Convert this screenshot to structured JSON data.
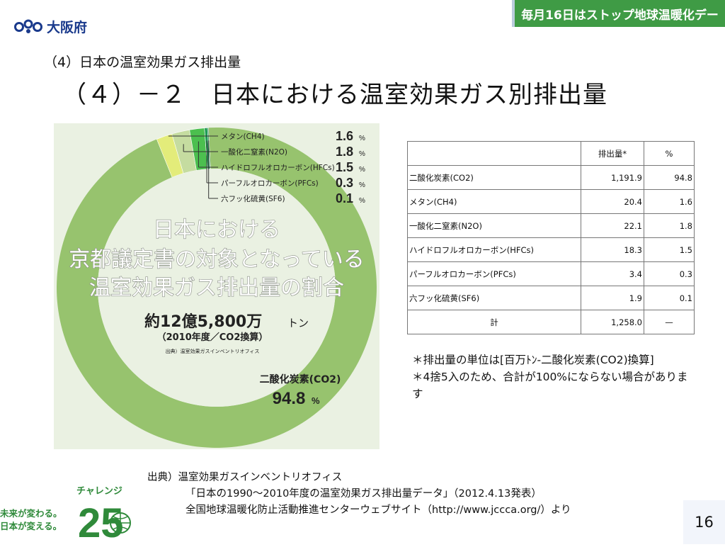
{
  "header": {
    "org_name": "大阪府",
    "banner_text": "毎月16日はストップ地球温暖化デー",
    "subtitle": "（4）日本の温室効果ガス排出量",
    "title": "（４）－２　日本における温室効果ガス別排出量"
  },
  "chart_data": {
    "type": "pie",
    "title_lines": [
      "日本における",
      "京都議定書の対象となっている",
      "温室効果ガス排出量の割合"
    ],
    "total_label": "約12億5,800万",
    "total_unit": "トン",
    "total_note": "（2010年度／CO2換算）",
    "source_small": "出典）温室効果ガスインベントリオフィス",
    "slices": [
      {
        "name": "二酸化炭素(CO2)",
        "value": 94.8,
        "label": "94.8",
        "color": "#97c36e"
      },
      {
        "name": "メタン(CH4)",
        "value": 1.6,
        "label": "1.6",
        "color": "#e3ec7a"
      },
      {
        "name": "一酸化二窒素(N2O)",
        "value": 1.8,
        "label": "1.8",
        "color": "#c5dca0"
      },
      {
        "name": "ハイドロフルオロカーボン(HFCs)",
        "value": 1.5,
        "label": "1.5",
        "color": "#4cbf4f"
      },
      {
        "name": "パーフルオロカーボン(PFCs)",
        "value": 0.3,
        "label": "0.3",
        "color": "#1f9a54"
      },
      {
        "name": "六フッ化硫黄(SF6)",
        "value": 0.1,
        "label": "0.1",
        "color": "#0e7c3c"
      }
    ],
    "unit": "%",
    "colors": {
      "background": "#eaf1e2",
      "center": "#eaf1e2",
      "text": "#222222"
    }
  },
  "table": {
    "headers": [
      "",
      "排出量*",
      "%"
    ],
    "rows": [
      {
        "name": "二酸化炭素(CO2)",
        "emission": "1,191.9",
        "percent": "94.8"
      },
      {
        "name": "メタン(CH4)",
        "emission": "20.4",
        "percent": "1.6"
      },
      {
        "name": "一酸化二窒素(N2O)",
        "emission": "22.1",
        "percent": "1.8"
      },
      {
        "name": "ハイドロフルオロカーボン(HFCs)",
        "emission": "18.3",
        "percent": "1.5"
      },
      {
        "name": "パーフルオロカーボン(PFCs)",
        "emission": "3.4",
        "percent": "0.3"
      },
      {
        "name": "六フッ化硫黄(SF6)",
        "emission": "1.9",
        "percent": "0.1"
      }
    ],
    "total": {
      "name": "計",
      "emission": "1,258.0",
      "percent": "—"
    }
  },
  "notes": {
    "line1": "＊排出量の単位は[百万ﾄﾝ-二酸化炭素(CO2)換算]",
    "line2": "＊4捨5入のため、合計が100%にならない場合があります"
  },
  "source": {
    "line1": "出典）温室効果ガスインベントリオフィス",
    "line2": "「日本の1990～2010年度の温室効果ガス排出量データ」（2012.4.13発表）",
    "line3": "全国地球温暖化防止活動推進センターウェブサイト（http://www.jccca.org/）より"
  },
  "challenge": {
    "title": "チャレンジ",
    "line1": "未来が変わる。",
    "line2": "日本が変える。",
    "number": "25"
  },
  "page_number": "16"
}
